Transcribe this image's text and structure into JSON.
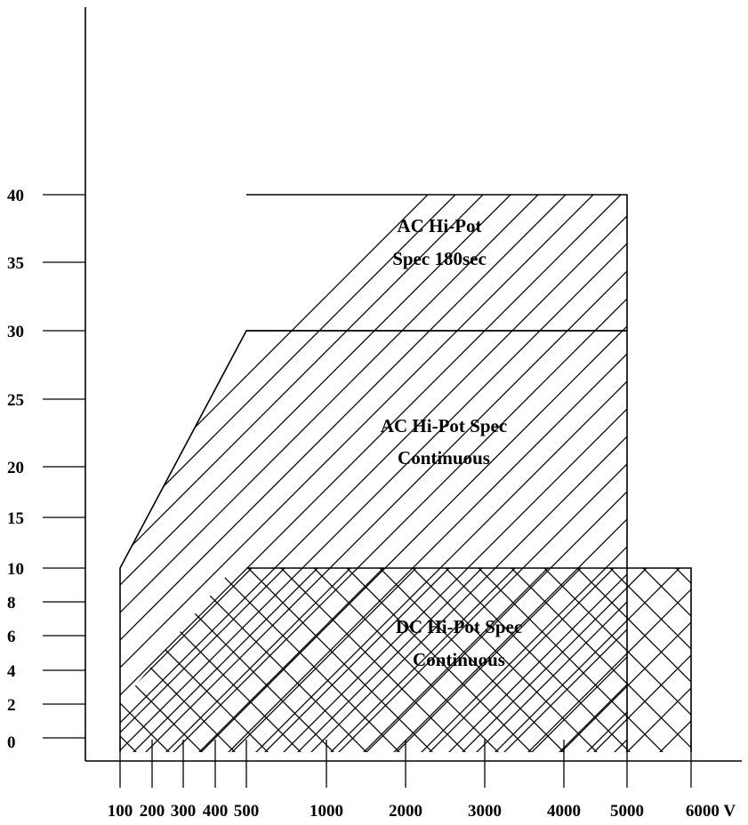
{
  "chart_data": {
    "type": "area",
    "title": "",
    "xlabel": "",
    "ylabel": "",
    "x_ticks": [
      "100",
      "200",
      "300",
      "400",
      "500",
      "1000",
      "2000",
      "3000",
      "4000",
      "5000",
      "6000 V"
    ],
    "y_ticks": [
      "40",
      "35",
      "30",
      "25",
      "20",
      "15",
      "10",
      "8",
      "6",
      "4",
      "2",
      "0"
    ],
    "regions": [
      {
        "name": "AC Hi-Pot Spec 180sec",
        "label_lines": [
          "AC Hi-Pot",
          "Spec 180sec"
        ],
        "hatch": "diagonal",
        "x_range": [
          "500",
          "5000"
        ],
        "y_range": [
          "30",
          "40"
        ]
      },
      {
        "name": "AC Hi-Pot Spec Continuous",
        "label_lines": [
          "AC Hi-Pot Spec",
          "Continuous"
        ],
        "hatch": "diagonal",
        "x_range": [
          "100",
          "5000"
        ],
        "y_range": [
          "0",
          "30"
        ],
        "boundary": [
          [
            "100",
            "10"
          ],
          [
            "500",
            "30"
          ],
          [
            "5000",
            "30"
          ],
          [
            "5000",
            "0"
          ]
        ]
      },
      {
        "name": "DC Hi-Pot Spec Continuous",
        "label_lines": [
          "DC Hi-Pot Spec",
          "Continuous"
        ],
        "hatch": "cross",
        "x_range": [
          "100",
          "6000 V"
        ],
        "y_range": [
          "0",
          "10"
        ]
      }
    ],
    "grid": false,
    "legend": "none"
  }
}
